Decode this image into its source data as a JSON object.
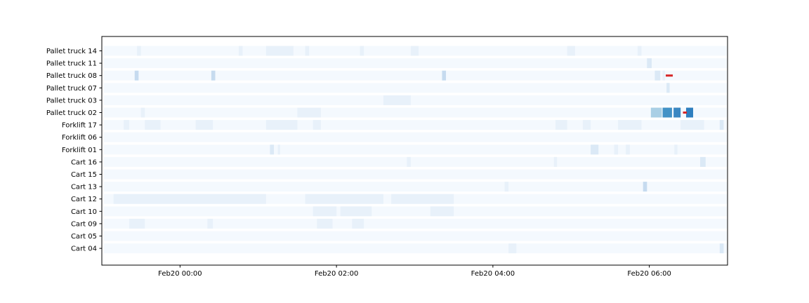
{
  "chart_data": {
    "type": "heatmap",
    "title": "",
    "xlabel": "",
    "ylabel": "",
    "x_tick_labels": [
      "Feb20 00:00",
      "Feb20 02:00",
      "Feb20 04:00",
      "Feb20 06:00"
    ],
    "x_tick_hours": [
      0,
      2,
      4,
      6
    ],
    "x_range_hours": [
      -1.0,
      7.0
    ],
    "rows": [
      "Pallet truck 14",
      "Pallet truck 11",
      "Pallet truck 08",
      "Pallet truck 07",
      "Pallet truck 03",
      "Pallet truck 02",
      "Forklift 17",
      "Forklift 06",
      "Forklift 01",
      "Cart 16",
      "Cart 15",
      "Cart 13",
      "Cart 12",
      "Cart 10",
      "Cart 09",
      "Cart 05",
      "Cart 04"
    ],
    "base_color": "#f4f9fe",
    "color_scale": [
      "#f4f9fe",
      "#e8f1fa",
      "#dbe9f6",
      "#c6dbef",
      "#a9cfe5",
      "#6baed6",
      "#4292c6",
      "#3a87c2",
      "#2f7fbf"
    ],
    "cells": [
      {
        "row": 0,
        "start": -0.55,
        "end": -0.5,
        "level": 1
      },
      {
        "row": 0,
        "start": 0.75,
        "end": 0.8,
        "level": 1
      },
      {
        "row": 0,
        "start": 1.1,
        "end": 1.45,
        "level": 1
      },
      {
        "row": 0,
        "start": 1.6,
        "end": 1.65,
        "level": 1
      },
      {
        "row": 0,
        "start": 2.3,
        "end": 2.35,
        "level": 1
      },
      {
        "row": 0,
        "start": 2.95,
        "end": 3.05,
        "level": 1
      },
      {
        "row": 0,
        "start": 4.95,
        "end": 5.05,
        "level": 1
      },
      {
        "row": 0,
        "start": 5.85,
        "end": 5.9,
        "level": 1
      },
      {
        "row": 1,
        "start": 5.97,
        "end": 6.03,
        "level": 2
      },
      {
        "row": 2,
        "start": -0.58,
        "end": -0.53,
        "level": 3
      },
      {
        "row": 2,
        "start": 0.4,
        "end": 0.45,
        "level": 3
      },
      {
        "row": 2,
        "start": 3.35,
        "end": 3.4,
        "level": 3
      },
      {
        "row": 2,
        "start": 6.07,
        "end": 6.14,
        "level": 2
      },
      {
        "row": 2,
        "start": 6.17,
        "end": 6.2,
        "level": 1
      },
      {
        "row": 3,
        "start": 6.22,
        "end": 6.26,
        "level": 2
      },
      {
        "row": 4,
        "start": 2.6,
        "end": 2.95,
        "level": 1
      },
      {
        "row": 5,
        "start": 6.02,
        "end": 6.16,
        "level": 4
      },
      {
        "row": 5,
        "start": 6.17,
        "end": 6.29,
        "level": 6
      },
      {
        "row": 5,
        "start": 6.31,
        "end": 6.4,
        "level": 7
      },
      {
        "row": 5,
        "start": 6.47,
        "end": 6.56,
        "level": 8
      },
      {
        "row": 5,
        "start": -0.5,
        "end": -0.45,
        "level": 1
      },
      {
        "row": 5,
        "start": 1.5,
        "end": 1.8,
        "level": 1
      },
      {
        "row": 6,
        "start": -0.72,
        "end": -0.65,
        "level": 1
      },
      {
        "row": 6,
        "start": -0.45,
        "end": -0.25,
        "level": 1
      },
      {
        "row": 6,
        "start": 0.2,
        "end": 0.42,
        "level": 1
      },
      {
        "row": 6,
        "start": 1.1,
        "end": 1.5,
        "level": 1
      },
      {
        "row": 6,
        "start": 1.7,
        "end": 1.8,
        "level": 1
      },
      {
        "row": 6,
        "start": 4.8,
        "end": 4.95,
        "level": 1
      },
      {
        "row": 6,
        "start": 5.15,
        "end": 5.25,
        "level": 1
      },
      {
        "row": 6,
        "start": 5.6,
        "end": 5.9,
        "level": 1
      },
      {
        "row": 6,
        "start": 6.4,
        "end": 6.7,
        "level": 1
      },
      {
        "row": 6,
        "start": 6.9,
        "end": 6.95,
        "level": 2
      },
      {
        "row": 8,
        "start": 1.15,
        "end": 1.2,
        "level": 2
      },
      {
        "row": 8,
        "start": 1.25,
        "end": 1.28,
        "level": 1
      },
      {
        "row": 8,
        "start": 5.25,
        "end": 5.35,
        "level": 2
      },
      {
        "row": 8,
        "start": 5.55,
        "end": 5.6,
        "level": 1
      },
      {
        "row": 8,
        "start": 5.7,
        "end": 5.75,
        "level": 1
      },
      {
        "row": 8,
        "start": 6.32,
        "end": 6.36,
        "level": 1
      },
      {
        "row": 9,
        "start": 2.9,
        "end": 2.95,
        "level": 1
      },
      {
        "row": 9,
        "start": 4.78,
        "end": 4.82,
        "level": 1
      },
      {
        "row": 9,
        "start": 6.65,
        "end": 6.72,
        "level": 2
      },
      {
        "row": 11,
        "start": 4.15,
        "end": 4.2,
        "level": 1
      },
      {
        "row": 11,
        "start": 5.92,
        "end": 5.97,
        "level": 3
      },
      {
        "row": 12,
        "start": -0.85,
        "end": 1.1,
        "level": 1
      },
      {
        "row": 12,
        "start": 1.6,
        "end": 2.6,
        "level": 1
      },
      {
        "row": 12,
        "start": 2.7,
        "end": 3.5,
        "level": 1
      },
      {
        "row": 13,
        "start": 1.7,
        "end": 2.0,
        "level": 1
      },
      {
        "row": 13,
        "start": 2.05,
        "end": 2.45,
        "level": 1
      },
      {
        "row": 13,
        "start": 3.2,
        "end": 3.5,
        "level": 1
      },
      {
        "row": 14,
        "start": -0.65,
        "end": -0.45,
        "level": 1
      },
      {
        "row": 14,
        "start": 0.35,
        "end": 0.42,
        "level": 1
      },
      {
        "row": 14,
        "start": 1.75,
        "end": 1.95,
        "level": 1
      },
      {
        "row": 14,
        "start": 2.2,
        "end": 2.35,
        "level": 1
      },
      {
        "row": 16,
        "start": 4.2,
        "end": 4.3,
        "level": 1
      },
      {
        "row": 16,
        "start": 6.9,
        "end": 6.95,
        "level": 2
      }
    ],
    "markers": [
      {
        "row": 2,
        "start": 6.21,
        "end": 6.3,
        "color": "#d62728"
      },
      {
        "row": 5,
        "start": 6.43,
        "end": 6.48,
        "color": "#d62728"
      }
    ]
  }
}
